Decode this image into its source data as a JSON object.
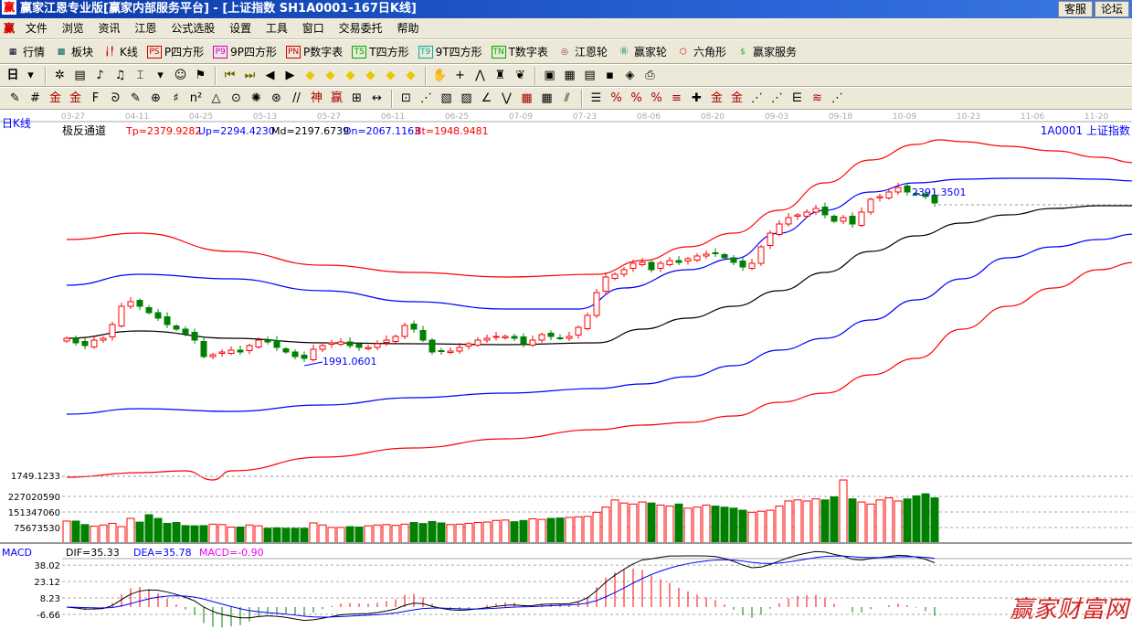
{
  "window": {
    "title": "赢家江恩专业版[赢家内部服务平台] - [上证指数   SH1A0001-167日K线]",
    "logo": "赢",
    "buttons": [
      "客服",
      "论坛"
    ]
  },
  "menu": {
    "logo": "赢",
    "items": [
      "文件",
      "浏览",
      "资讯",
      "江恩",
      "公式选股",
      "设置",
      "工具",
      "窗口",
      "交易委托",
      "帮助"
    ]
  },
  "toolbar1": [
    {
      "icon": "quote-table-icon",
      "glyph": "▦",
      "label": "行情",
      "color": "#003"
    },
    {
      "icon": "sector-icon",
      "glyph": "▩",
      "label": "板块",
      "color": "#066"
    },
    {
      "icon": "kline-icon",
      "glyph": "╽╿",
      "label": "K线",
      "color": "#c00"
    },
    {
      "icon": "ps-icon",
      "glyph": "PS",
      "label": "P四方形",
      "color": "#c00"
    },
    {
      "icon": "p9-icon",
      "glyph": "P9",
      "label": "9P四方形",
      "color": "#c0c"
    },
    {
      "icon": "pn-icon",
      "glyph": "PN",
      "label": "P数字表",
      "color": "#c00"
    },
    {
      "icon": "ts-icon",
      "glyph": "TS",
      "label": "T四方形",
      "color": "#0a0"
    },
    {
      "icon": "t9-icon",
      "glyph": "T9",
      "label": "9T四方形",
      "color": "#0aa"
    },
    {
      "icon": "tn-icon",
      "glyph": "TN",
      "label": "T数字表",
      "color": "#0a0"
    },
    {
      "icon": "gann-wheel-icon",
      "glyph": "◎",
      "label": "江恩轮",
      "color": "#822"
    },
    {
      "icon": "winner-wheel-icon",
      "glyph": "Ⓑ",
      "label": "赢家轮",
      "color": "#066"
    },
    {
      "icon": "hexagon-icon",
      "glyph": "⬡",
      "label": "六角形",
      "color": "#c00"
    },
    {
      "icon": "dollar-icon",
      "glyph": "$",
      "label": "赢家服务",
      "color": "#3a3"
    }
  ],
  "toolbar2": {
    "period": "日",
    "icons": [
      [
        "period-dropdown-icon",
        "▾"
      ],
      [
        "sep",
        ""
      ],
      [
        "draw-pattern-icon",
        "✲"
      ],
      [
        "clipboard-icon",
        "▤"
      ],
      [
        "step-3-icon",
        "♪"
      ],
      [
        "step-9-icon",
        "♫"
      ],
      [
        "candle-style-icon",
        "⌶"
      ],
      [
        "candle-dropdown-icon",
        "▾"
      ],
      [
        "face-icon",
        "☺"
      ],
      [
        "flag-icon",
        "⚑"
      ],
      [
        "sep",
        ""
      ],
      [
        "first-icon",
        "⏮"
      ],
      [
        "last-icon",
        "⏭"
      ],
      [
        "left-icon",
        "◀"
      ],
      [
        "right-icon",
        "▶"
      ],
      [
        "arrow-left-diamond-icon",
        "◆"
      ],
      [
        "arrow-right-diamond-icon",
        "◆"
      ],
      [
        "arrow-both-diamond-icon",
        "◆"
      ],
      [
        "shrink-diamond-icon",
        "◆"
      ],
      [
        "expand-diamond-icon",
        "◆"
      ],
      [
        "cross-diamond-icon",
        "◆"
      ],
      [
        "sep",
        ""
      ],
      [
        "hand-icon",
        "✋"
      ],
      [
        "crosshair-icon",
        "+"
      ],
      [
        "line-tool-icon",
        "⋀"
      ],
      [
        "tool-icon",
        "♜"
      ],
      [
        "brain-icon",
        "❦"
      ],
      [
        "sep",
        ""
      ],
      [
        "calendar-icon",
        "▣"
      ],
      [
        "calculator-icon",
        "▦"
      ],
      [
        "notes-icon",
        "▤"
      ],
      [
        "save-icon",
        "▪"
      ],
      [
        "network-icon",
        "◈"
      ],
      [
        "printer-icon",
        "⎙"
      ]
    ]
  },
  "toolbar3": {
    "icons": [
      [
        "pen-icon",
        "✎"
      ],
      [
        "hash-icon",
        "#"
      ],
      [
        "gold-icon",
        "金"
      ],
      [
        "gold2-icon",
        "金"
      ],
      [
        "f-icon",
        "F"
      ],
      [
        "spiral-icon",
        "ᘐ"
      ],
      [
        "pen2-icon",
        "✎"
      ],
      [
        "circle-grid-icon",
        "⊕"
      ],
      [
        "grid-icon",
        "♯"
      ],
      [
        "n2-icon",
        "n²"
      ],
      [
        "triangle-icon",
        "△"
      ],
      [
        "target-icon",
        "⊙"
      ],
      [
        "web-icon",
        "✺"
      ],
      [
        "web2-icon",
        "⊛"
      ],
      [
        "parallel-icon",
        "//"
      ],
      [
        "god-icon",
        "神"
      ],
      [
        "win-icon",
        "赢"
      ],
      [
        "ruler-icon",
        "⊞"
      ],
      [
        "arrows-icon",
        "↔"
      ],
      [
        "sep",
        ""
      ],
      [
        "box-icon",
        "⊡"
      ],
      [
        "fan-icon",
        "⋰"
      ],
      [
        "grid-fan-icon",
        "▧"
      ],
      [
        "grid-fan2-icon",
        "▨"
      ],
      [
        "angle-icon",
        "∠"
      ],
      [
        "wave-icon",
        "⋁"
      ],
      [
        "grid-red-icon",
        "▦"
      ],
      [
        "grid-black-icon",
        "▦"
      ],
      [
        "slash-icon",
        "⫽"
      ],
      [
        "sep",
        ""
      ],
      [
        "ladder-icon",
        "☰"
      ],
      [
        "percent-icon",
        "%"
      ],
      [
        "percent2-icon",
        "%"
      ],
      [
        "gold3-icon",
        "%"
      ],
      [
        "gold4-icon",
        "≡"
      ],
      [
        "cross-icon",
        "✚"
      ],
      [
        "gold5-icon",
        "金"
      ],
      [
        "gold6-icon",
        "金"
      ],
      [
        "fan2-icon",
        "⋰"
      ],
      [
        "fan3-icon",
        "⋰"
      ],
      [
        "stairs-icon",
        "⋿"
      ],
      [
        "red-fan-icon",
        "≋"
      ],
      [
        "fan4-icon",
        "⋰"
      ]
    ]
  },
  "chart_header": {
    "period_label": "日K线",
    "indicator_name": "极反通道",
    "tp": "Tp=2379.9282",
    "up": "Up=2294.4230",
    "md": "Md=2197.6739",
    "dn": "Dn=2067.1163",
    "bt": "Bt=1948.9481",
    "symbol": "1A0001  上证指数"
  },
  "colors": {
    "up": "#ff0000",
    "down": "#008000",
    "tp": "#ff0000",
    "upline": "#0000ff",
    "md": "#000000",
    "dn": "#0000ff",
    "bt": "#ff0000"
  },
  "macd_header": {
    "name": "MACD",
    "dif": "DIF=35.33",
    "dea": "DEA=35.78",
    "macd": "MACD=-0.90"
  },
  "watermark": "赢家财富网",
  "chart_data": {
    "type": "candlestick",
    "date_ticks": [
      "03-27",
      "04-11",
      "04-25",
      "05-13",
      "05-27",
      "06-11",
      "06-25",
      "07-09",
      "07-23",
      "08-06",
      "08-20",
      "09-03",
      "09-18",
      "10-09",
      "10-23",
      "11-06",
      "11-20"
    ],
    "price_axis_label": "1749.1233",
    "annotations": {
      "low": "1991.0601",
      "high": "2391.3501",
      "low_value": 1991.06,
      "high_value": 2391.35
    },
    "close": [
      2051,
      2041,
      2035,
      2047,
      2051,
      2081,
      2121,
      2131,
      2121,
      2107,
      2095,
      2081,
      2071,
      2061,
      2047,
      2011,
      2015,
      2021,
      2025,
      2021,
      2035,
      2047,
      2043,
      2031,
      2021,
      2011,
      2007,
      2027,
      2035,
      2041,
      2043,
      2035,
      2031,
      2031,
      2039,
      2047,
      2055,
      2079,
      2071,
      2047,
      2021,
      2023,
      2023,
      2031,
      2039,
      2047,
      2051,
      2055,
      2055,
      2051,
      2039,
      2047,
      2059,
      2055,
      2051,
      2055,
      2075,
      2101,
      2151,
      2185,
      2191,
      2201,
      2215,
      2217,
      2201,
      2215,
      2221,
      2217,
      2225,
      2231,
      2235,
      2237,
      2227,
      2217,
      2207,
      2215,
      2251,
      2281,
      2301,
      2315,
      2321,
      2327,
      2335,
      2321,
      2307,
      2315,
      2301,
      2327,
      2355,
      2361,
      2371,
      2381,
      2371,
      2367,
      2361,
      2347
    ],
    "volume_axis": [
      "227020590",
      "151347060",
      "75673530"
    ],
    "volume_ticks": [
      227020590,
      151347060,
      75673530
    ],
    "volume_millions": [
      107,
      107,
      90,
      82,
      88,
      96,
      80,
      120,
      102,
      138,
      120,
      96,
      100,
      85,
      84,
      85,
      92,
      90,
      78,
      78,
      88,
      84,
      72,
      74,
      72,
      72,
      72,
      98,
      88,
      76,
      76,
      80,
      78,
      84,
      88,
      90,
      86,
      92,
      100,
      95,
      105,
      98,
      90,
      92,
      96,
      100,
      102,
      110,
      112,
      104,
      110,
      118,
      115,
      120,
      122,
      125,
      128,
      130,
      150,
      175,
      210,
      195,
      190,
      200,
      195,
      185,
      180,
      190,
      170,
      175,
      185,
      180,
      175,
      170,
      160,
      150,
      155,
      160,
      180,
      205,
      210,
      205,
      215,
      210,
      225,
      307,
      215,
      200,
      190,
      210,
      220,
      205,
      215,
      230,
      240,
      220
    ],
    "channels": [
      {
        "name": "Tp",
        "x": [
          0,
          8,
          18,
          28,
          38,
          48,
          58,
          63,
          68,
          73,
          78,
          83,
          88,
          93,
          95.5,
          98,
          103,
          108,
          113,
          117
        ],
        "y": [
          2267,
          2281,
          2241,
          2211,
          2195,
          2185,
          2191,
          2221,
          2251,
          2281,
          2331,
          2391,
          2441,
          2475,
          2485,
          2481,
          2471,
          2461,
          2447,
          2435
        ]
      },
      {
        "name": "Up",
        "x": [
          0,
          8,
          18,
          28,
          38,
          48,
          56,
          61,
          68,
          73,
          78,
          83,
          88,
          93,
          98,
          103,
          108,
          113,
          117
        ],
        "y": [
          2167,
          2191,
          2181,
          2155,
          2131,
          2115,
          2115,
          2161,
          2201,
          2225,
          2281,
          2331,
          2371,
          2391,
          2399,
          2401,
          2401,
          2399,
          2395
        ]
      },
      {
        "name": "Md",
        "x": [
          0,
          8,
          18,
          28,
          38,
          48,
          58,
          63,
          68,
          73,
          78,
          83,
          88,
          93,
          98,
          103,
          108,
          113,
          117
        ],
        "y": [
          2051,
          2067,
          2051,
          2041,
          2039,
          2037,
          2041,
          2071,
          2095,
          2121,
          2155,
          2195,
          2241,
          2275,
          2303,
          2321,
          2335,
          2341,
          2341
        ]
      },
      {
        "name": "Dn",
        "x": [
          0,
          8,
          18,
          28,
          38,
          48,
          58,
          63,
          68,
          73,
          78,
          83,
          88,
          93,
          98,
          103,
          108,
          113,
          117
        ],
        "y": [
          1885,
          1897,
          1891,
          1905,
          1921,
          1931,
          1941,
          1951,
          1967,
          1991,
          2025,
          2051,
          2091,
          2135,
          2181,
          2227,
          2251,
          2267,
          2279
        ]
      },
      {
        "name": "Bt",
        "x": [
          0,
          8,
          13,
          16,
          18,
          28,
          38,
          48,
          58,
          63,
          68,
          73,
          78,
          83,
          88,
          93,
          98,
          103,
          108,
          113,
          117
        ],
        "y": [
          1747,
          1757,
          1761,
          1741,
          1761,
          1791,
          1811,
          1831,
          1851,
          1861,
          1867,
          1881,
          1911,
          1931,
          1971,
          2007,
          2071,
          2121,
          2161,
          2201,
          2217
        ]
      }
    ],
    "macd_axis": [
      "38.02",
      "23.12",
      "8.23",
      "-6.66"
    ],
    "macd_ticks": [
      38.02,
      23.12,
      8.23,
      -6.66
    ]
  }
}
